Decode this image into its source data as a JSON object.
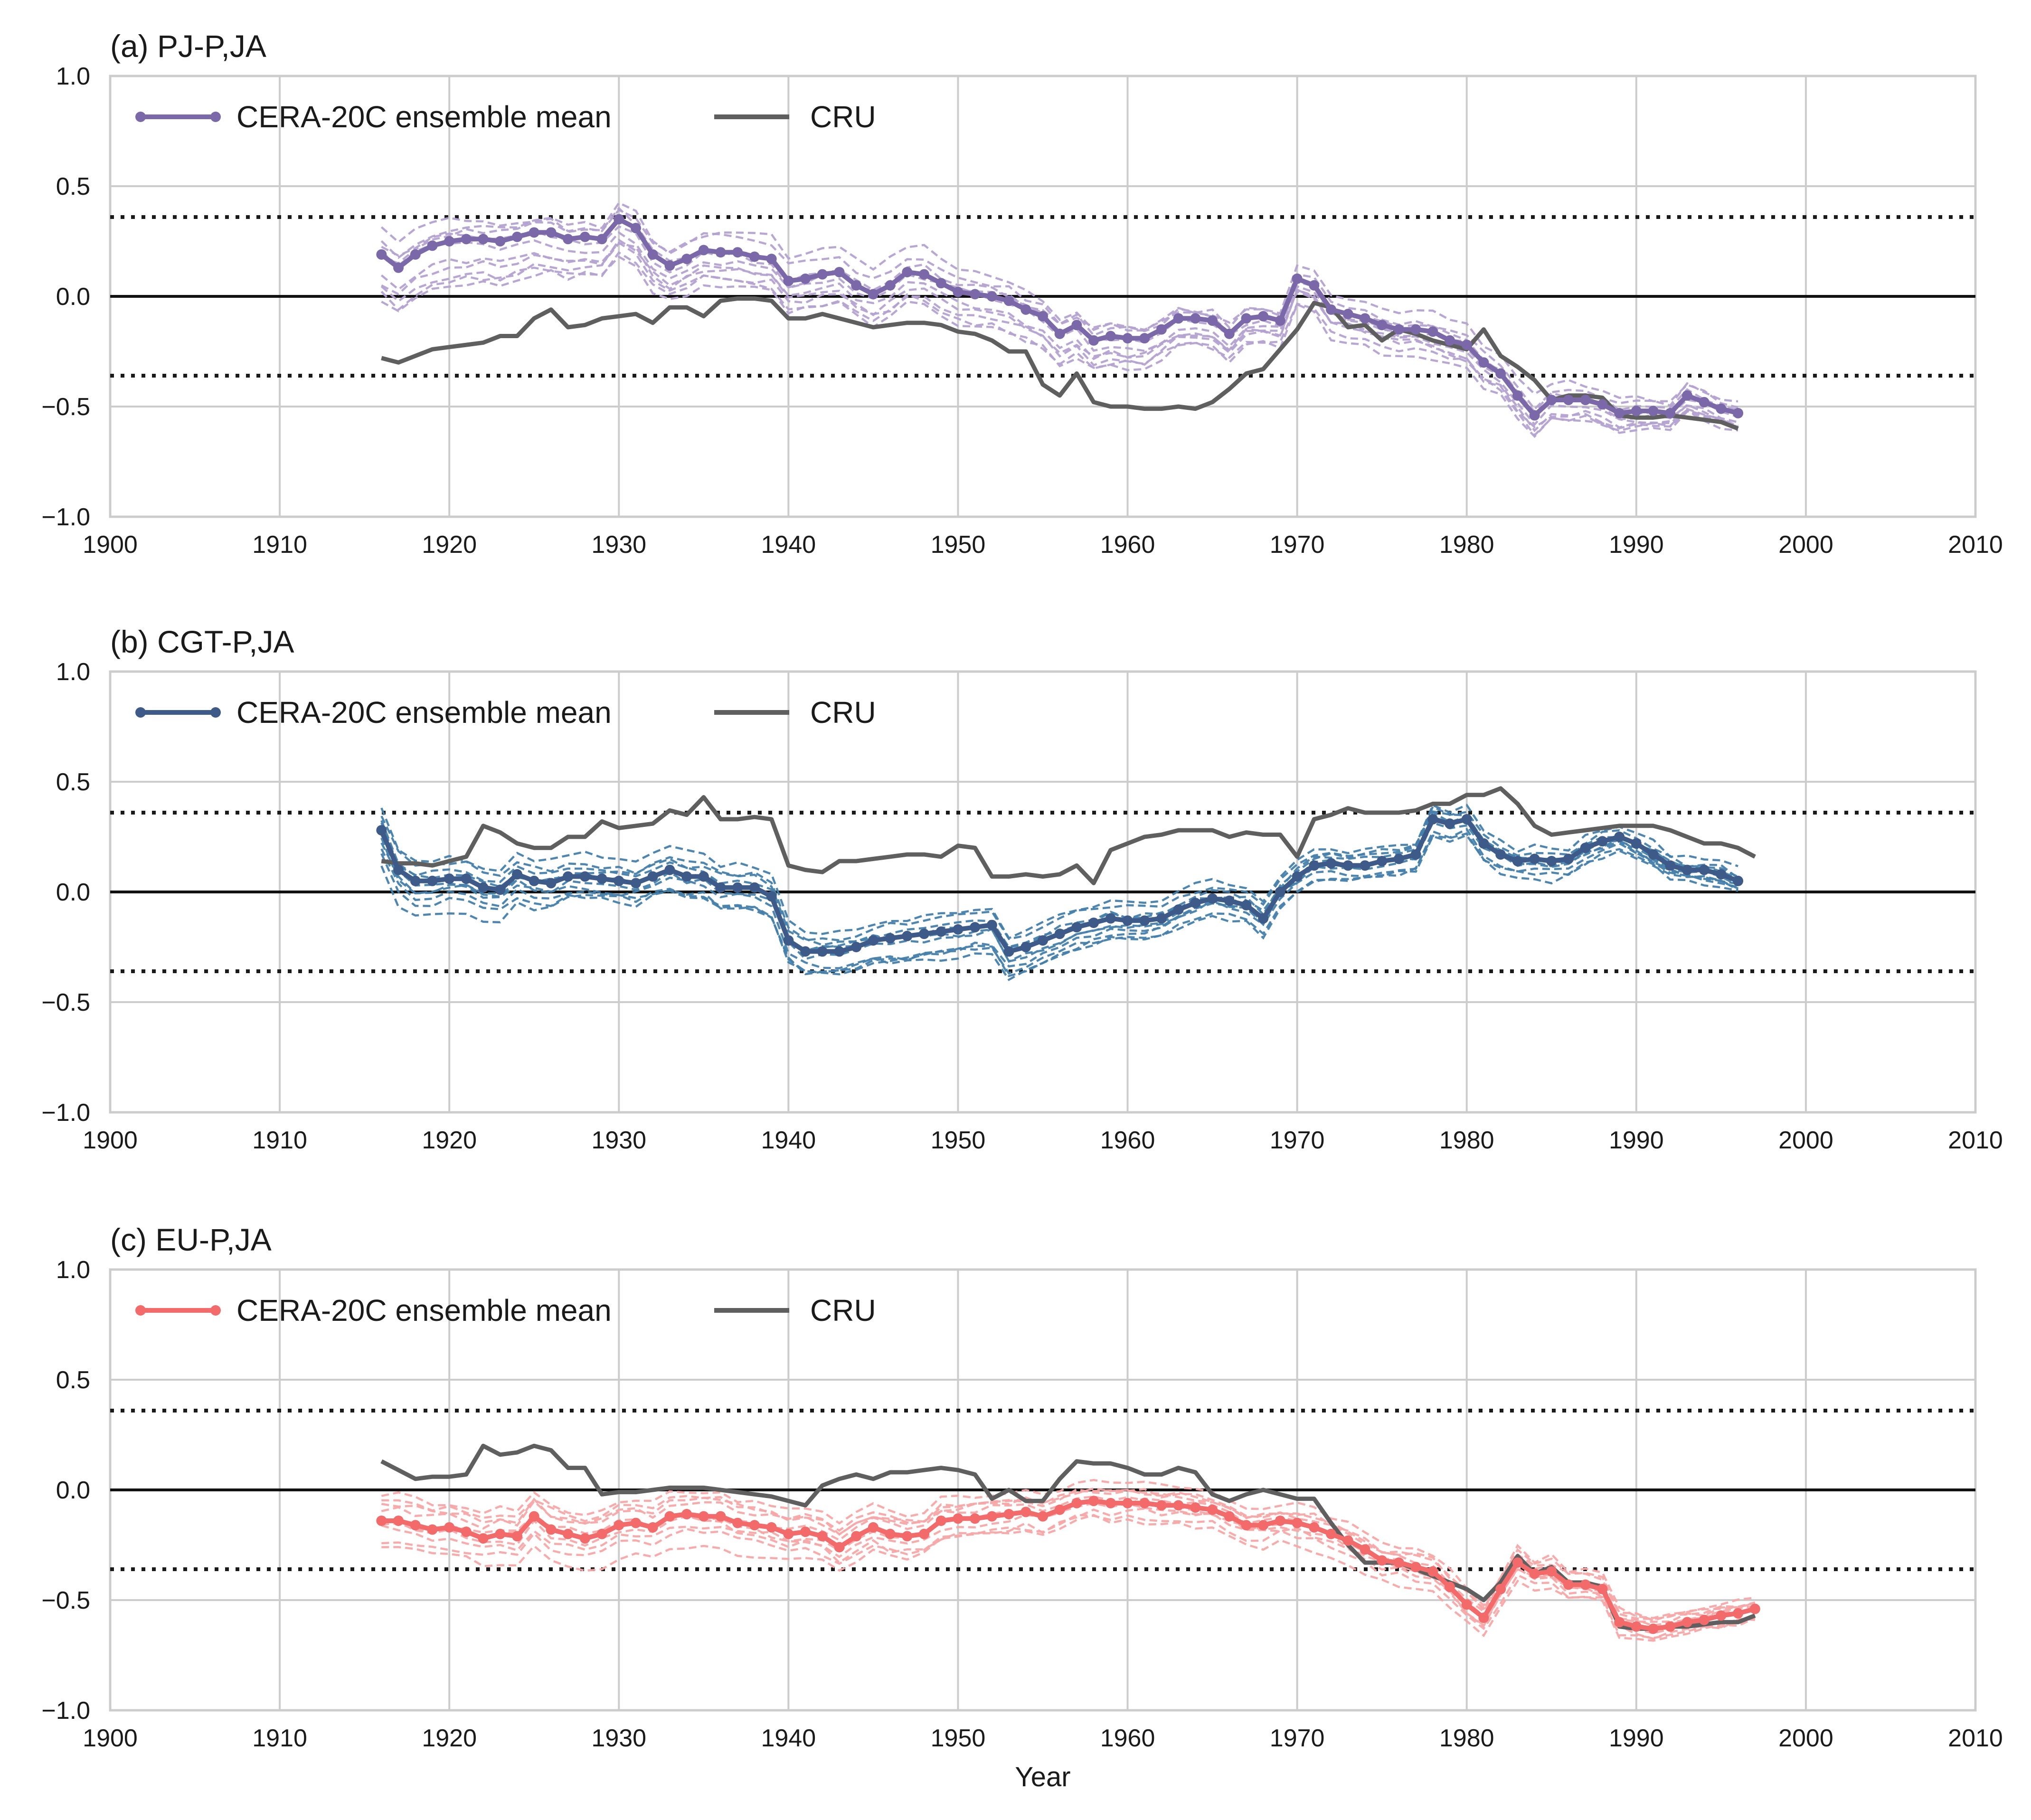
{
  "chart_data": [
    {
      "type": "line",
      "title": "(a) PJ-P,JA",
      "xlabel": "",
      "ylabel": "",
      "xlim": [
        1900,
        2010
      ],
      "ylim": [
        -1.0,
        1.0
      ],
      "xticks": [
        1900,
        1910,
        1920,
        1930,
        1940,
        1950,
        1960,
        1970,
        1980,
        1990,
        2000,
        2010
      ],
      "yticks": [
        1.0,
        0.5,
        0.0,
        -0.5,
        -1.0
      ],
      "ytick_labels": [
        "1.0",
        "0.5",
        "0.0",
        "−0.5",
        "−1.0"
      ],
      "reference_lines": {
        "solid": 0.0,
        "dotted": [
          0.36,
          -0.36
        ]
      },
      "colors": {
        "mean": "#7b68a8",
        "members": "#b3a2d0",
        "cru": "#5f5f5f"
      },
      "legend": {
        "placement": "upper-left",
        "mean_label": "CERA-20C ensemble mean",
        "cru_label": "CRU"
      },
      "member_spread": 0.16,
      "series": [
        {
          "name": "CERA-20C ensemble mean",
          "x_start": 1916,
          "values": [
            0.19,
            0.13,
            0.19,
            0.23,
            0.25,
            0.26,
            0.26,
            0.25,
            0.27,
            0.29,
            0.29,
            0.26,
            0.27,
            0.26,
            0.35,
            0.31,
            0.19,
            0.14,
            0.17,
            0.21,
            0.2,
            0.2,
            0.18,
            0.17,
            0.07,
            0.08,
            0.1,
            0.11,
            0.05,
            0.01,
            0.05,
            0.11,
            0.1,
            0.06,
            0.02,
            0.01,
            0.0,
            -0.02,
            -0.06,
            -0.09,
            -0.17,
            -0.13,
            -0.2,
            -0.18,
            -0.19,
            -0.19,
            -0.15,
            -0.1,
            -0.1,
            -0.11,
            -0.17,
            -0.1,
            -0.09,
            -0.11,
            0.08,
            0.05,
            -0.06,
            -0.08,
            -0.1,
            -0.13,
            -0.15,
            -0.15,
            -0.16,
            -0.2,
            -0.22,
            -0.3,
            -0.35,
            -0.45,
            -0.54,
            -0.47,
            -0.47,
            -0.47,
            -0.49,
            -0.53,
            -0.52,
            -0.52,
            -0.53,
            -0.45,
            -0.48,
            -0.51,
            -0.53
          ]
        },
        {
          "name": "CRU",
          "x_start": 1916,
          "values": [
            -0.28,
            -0.3,
            -0.27,
            -0.24,
            -0.23,
            -0.22,
            -0.21,
            -0.18,
            -0.18,
            -0.1,
            -0.06,
            -0.14,
            -0.13,
            -0.1,
            -0.09,
            -0.08,
            -0.12,
            -0.05,
            -0.05,
            -0.09,
            -0.02,
            -0.01,
            -0.01,
            -0.02,
            -0.1,
            -0.1,
            -0.08,
            -0.1,
            -0.12,
            -0.14,
            -0.13,
            -0.12,
            -0.12,
            -0.13,
            -0.16,
            -0.17,
            -0.2,
            -0.25,
            -0.25,
            -0.4,
            -0.45,
            -0.35,
            -0.48,
            -0.5,
            -0.5,
            -0.51,
            -0.51,
            -0.5,
            -0.51,
            -0.48,
            -0.42,
            -0.35,
            -0.33,
            -0.24,
            -0.15,
            -0.03,
            -0.05,
            -0.14,
            -0.13,
            -0.2,
            -0.15,
            -0.17,
            -0.2,
            -0.22,
            -0.24,
            -0.15,
            -0.27,
            -0.32,
            -0.38,
            -0.47,
            -0.45,
            -0.45,
            -0.46,
            -0.54,
            -0.55,
            -0.55,
            -0.54,
            -0.55,
            -0.56,
            -0.57,
            -0.6
          ]
        }
      ]
    },
    {
      "type": "line",
      "title": "(b)  CGT-P,JA",
      "xlabel": "",
      "ylabel": "",
      "xlim": [
        1900,
        2010
      ],
      "ylim": [
        -1.0,
        1.0
      ],
      "xticks": [
        1900,
        1910,
        1920,
        1930,
        1940,
        1950,
        1960,
        1970,
        1980,
        1990,
        2000,
        2010
      ],
      "yticks": [
        1.0,
        0.5,
        0.0,
        -0.5,
        -1.0
      ],
      "ytick_labels": [
        "1.0",
        "0.5",
        "0.0",
        "−0.5",
        "−1.0"
      ],
      "reference_lines": {
        "solid": 0.0,
        "dotted": [
          0.36,
          -0.36
        ]
      },
      "colors": {
        "mean": "#3e5a88",
        "members": "#4480ab",
        "cru": "#5f5f5f"
      },
      "legend": {
        "placement": "upper-left",
        "mean_label": "CERA-20C ensemble mean",
        "cru_label": "CRU"
      },
      "member_spread": 0.15,
      "series": [
        {
          "name": "CERA-20C ensemble mean",
          "x_start": 1916,
          "values": [
            0.28,
            0.1,
            0.05,
            0.05,
            0.06,
            0.06,
            0.02,
            0.01,
            0.08,
            0.05,
            0.04,
            0.07,
            0.07,
            0.06,
            0.05,
            0.04,
            0.07,
            0.1,
            0.07,
            0.07,
            0.02,
            0.02,
            0.02,
            -0.02,
            -0.22,
            -0.27,
            -0.27,
            -0.27,
            -0.25,
            -0.22,
            -0.21,
            -0.2,
            -0.19,
            -0.18,
            -0.17,
            -0.16,
            -0.15,
            -0.27,
            -0.25,
            -0.22,
            -0.19,
            -0.16,
            -0.14,
            -0.12,
            -0.13,
            -0.13,
            -0.12,
            -0.08,
            -0.05,
            -0.03,
            -0.04,
            -0.06,
            -0.12,
            0.0,
            0.07,
            0.12,
            0.13,
            0.12,
            0.12,
            0.14,
            0.15,
            0.17,
            0.33,
            0.31,
            0.33,
            0.22,
            0.17,
            0.14,
            0.15,
            0.14,
            0.15,
            0.2,
            0.23,
            0.25,
            0.22,
            0.17,
            0.12,
            0.1,
            0.1,
            0.08,
            0.05
          ]
        },
        {
          "name": "CRU",
          "x_start": 1916,
          "values": [
            0.14,
            0.13,
            0.13,
            0.12,
            0.14,
            0.16,
            0.3,
            0.27,
            0.22,
            0.2,
            0.2,
            0.25,
            0.25,
            0.32,
            0.29,
            0.3,
            0.31,
            0.37,
            0.35,
            0.43,
            0.33,
            0.33,
            0.34,
            0.33,
            0.12,
            0.1,
            0.09,
            0.14,
            0.14,
            0.15,
            0.16,
            0.17,
            0.17,
            0.16,
            0.21,
            0.2,
            0.07,
            0.07,
            0.08,
            0.07,
            0.08,
            0.12,
            0.04,
            0.19,
            0.22,
            0.25,
            0.26,
            0.28,
            0.28,
            0.28,
            0.25,
            0.27,
            0.26,
            0.26,
            0.16,
            0.33,
            0.35,
            0.38,
            0.36,
            0.36,
            0.36,
            0.37,
            0.4,
            0.4,
            0.44,
            0.44,
            0.47,
            0.4,
            0.3,
            0.26,
            0.27,
            0.28,
            0.29,
            0.3,
            0.3,
            0.3,
            0.28,
            0.25,
            0.22,
            0.22,
            0.2,
            0.16
          ]
        }
      ]
    },
    {
      "type": "line",
      "title": "(c) EU-P,JA",
      "xlabel": "Year",
      "ylabel": "",
      "xlim": [
        1900,
        2010
      ],
      "ylim": [
        -1.0,
        1.0
      ],
      "xticks": [
        1900,
        1910,
        1920,
        1930,
        1940,
        1950,
        1960,
        1970,
        1980,
        1990,
        2000,
        2010
      ],
      "yticks": [
        1.0,
        0.5,
        0.0,
        -0.5,
        -1.0
      ],
      "ytick_labels": [
        "1.0",
        "0.5",
        "0.0",
        "−0.5",
        "−1.0"
      ],
      "reference_lines": {
        "solid": 0.0,
        "dotted": [
          0.36,
          -0.36
        ]
      },
      "colors": {
        "mean": "#f26a6a",
        "members": "#f7a6a6",
        "cru": "#5f5f5f"
      },
      "legend": {
        "placement": "upper-left",
        "mean_label": "CERA-20C ensemble mean",
        "cru_label": "CRU"
      },
      "member_spread": 0.15,
      "series": [
        {
          "name": "CERA-20C ensemble mean",
          "x_start": 1916,
          "values": [
            -0.14,
            -0.14,
            -0.16,
            -0.18,
            -0.17,
            -0.19,
            -0.22,
            -0.2,
            -0.21,
            -0.12,
            -0.18,
            -0.2,
            -0.22,
            -0.2,
            -0.16,
            -0.15,
            -0.17,
            -0.12,
            -0.11,
            -0.12,
            -0.12,
            -0.15,
            -0.16,
            -0.17,
            -0.2,
            -0.19,
            -0.21,
            -0.26,
            -0.21,
            -0.17,
            -0.2,
            -0.21,
            -0.2,
            -0.14,
            -0.13,
            -0.13,
            -0.12,
            -0.11,
            -0.1,
            -0.12,
            -0.09,
            -0.06,
            -0.05,
            -0.06,
            -0.06,
            -0.06,
            -0.07,
            -0.07,
            -0.08,
            -0.09,
            -0.12,
            -0.16,
            -0.16,
            -0.14,
            -0.15,
            -0.17,
            -0.2,
            -0.23,
            -0.27,
            -0.32,
            -0.33,
            -0.35,
            -0.37,
            -0.44,
            -0.52,
            -0.58,
            -0.45,
            -0.33,
            -0.38,
            -0.37,
            -0.43,
            -0.43,
            -0.45,
            -0.6,
            -0.62,
            -0.63,
            -0.62,
            -0.6,
            -0.59,
            -0.57,
            -0.56,
            -0.54
          ]
        },
        {
          "name": "CRU",
          "x_start": 1916,
          "values": [
            0.13,
            0.09,
            0.05,
            0.06,
            0.06,
            0.07,
            0.2,
            0.16,
            0.17,
            0.2,
            0.18,
            0.1,
            0.1,
            -0.02,
            -0.01,
            -0.01,
            0.0,
            0.01,
            0.01,
            0.01,
            0.0,
            -0.01,
            -0.02,
            -0.03,
            -0.05,
            -0.07,
            0.02,
            0.05,
            0.07,
            0.05,
            0.08,
            0.08,
            0.09,
            0.1,
            0.09,
            0.07,
            -0.04,
            0.0,
            -0.05,
            -0.05,
            0.05,
            0.13,
            0.12,
            0.12,
            0.1,
            0.07,
            0.07,
            0.1,
            0.08,
            -0.02,
            -0.05,
            -0.02,
            0.0,
            -0.02,
            -0.04,
            -0.04,
            -0.15,
            -0.25,
            -0.33,
            -0.33,
            -0.33,
            -0.36,
            -0.39,
            -0.42,
            -0.45,
            -0.5,
            -0.42,
            -0.3,
            -0.38,
            -0.35,
            -0.42,
            -0.42,
            -0.44,
            -0.62,
            -0.63,
            -0.63,
            -0.62,
            -0.62,
            -0.61,
            -0.6,
            -0.6,
            -0.57
          ]
        }
      ]
    }
  ]
}
